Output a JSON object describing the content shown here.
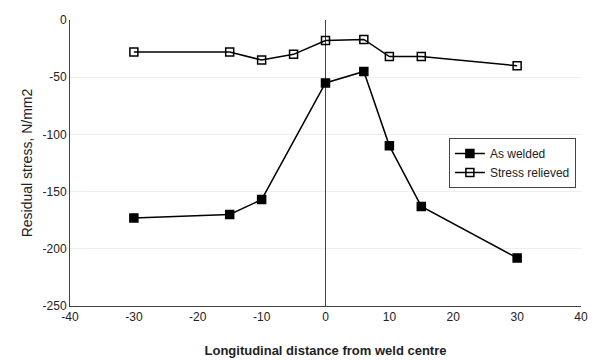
{
  "chart_data": {
    "type": "line",
    "xlabel": "Longitudinal distance from weld centre",
    "ylabel": "Residual stress, N/mm2",
    "series": [
      {
        "name": "As welded",
        "color": "#000000",
        "marker": "square",
        "x": [
          -30,
          -15,
          -10,
          0,
          6,
          10,
          15,
          30
        ],
        "values": [
          -173,
          -170,
          -157,
          -55,
          -45,
          -110,
          -163,
          -208
        ]
      },
      {
        "name": "Stress relieved",
        "color": "#000000",
        "marker": "square-open",
        "x": [
          -30,
          -15,
          -10,
          -5,
          0,
          6,
          10,
          15,
          30
        ],
        "values": [
          -28,
          -28,
          -35,
          -30,
          -18,
          -17,
          -32,
          -32,
          -40
        ]
      }
    ],
    "xlim": [
      -40,
      40
    ],
    "ylim": [
      -250,
      0
    ],
    "xticks": [
      -40,
      -30,
      -20,
      -10,
      0,
      10,
      20,
      30,
      40
    ],
    "yticks": [
      0,
      -50,
      -100,
      -150,
      -200,
      -250
    ],
    "grid": "y",
    "legend": "right"
  }
}
